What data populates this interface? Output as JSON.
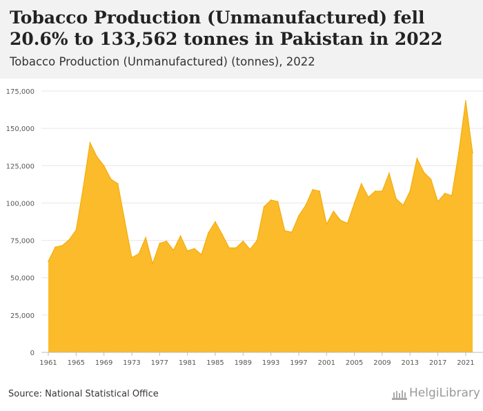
{
  "header": {
    "title": "Tobacco Production (Unmanufactured) fell 20.6% to 133,562 tonnes in Pakistan in 2022",
    "subtitle": "Tobacco Production (Unmanufactured) (tonnes), 2022"
  },
  "footer": {
    "source": "Source: National Statistical Office",
    "logo_text": "HelgiLibrary"
  },
  "colors": {
    "area_fill": "#fbbb2a",
    "area_line": "#f2a900",
    "header_bg": "#f2f2f2",
    "grid": "#e6e6e6"
  },
  "chart_data": {
    "type": "area",
    "title": "Tobacco Production (Unmanufactured) (tonnes), 2022",
    "xlabel": "",
    "ylabel": "",
    "ylim": [
      0,
      175000
    ],
    "y_ticks": [
      0,
      25000,
      50000,
      75000,
      100000,
      125000,
      150000,
      175000
    ],
    "y_tick_labels": [
      "0",
      "25,000",
      "50,000",
      "75,000",
      "100,000",
      "125,000",
      "150,000",
      "175,000"
    ],
    "x_tick_labels": [
      "1961",
      "1965",
      "1969",
      "1973",
      "1977",
      "1981",
      "1985",
      "1989",
      "1993",
      "1997",
      "2001",
      "2005",
      "2009",
      "2013",
      "2017",
      "2021"
    ],
    "grid": true,
    "x": [
      1961,
      1962,
      1963,
      1964,
      1965,
      1966,
      1967,
      1968,
      1969,
      1970,
      1971,
      1972,
      1973,
      1974,
      1975,
      1976,
      1977,
      1978,
      1979,
      1980,
      1981,
      1982,
      1983,
      1984,
      1985,
      1986,
      1987,
      1988,
      1989,
      1990,
      1991,
      1992,
      1993,
      1994,
      1995,
      1996,
      1997,
      1998,
      1999,
      2000,
      2001,
      2002,
      2003,
      2004,
      2005,
      2006,
      2007,
      2008,
      2009,
      2010,
      2011,
      2012,
      2013,
      2014,
      2015,
      2016,
      2017,
      2018,
      2019,
      2020,
      2021,
      2022
    ],
    "values": [
      61000,
      70500,
      71500,
      75500,
      82000,
      110000,
      140500,
      131000,
      125000,
      116000,
      113000,
      88000,
      63500,
      66000,
      77000,
      59500,
      73000,
      74500,
      68500,
      78000,
      68000,
      69500,
      65500,
      80000,
      87500,
      79000,
      70000,
      70000,
      74500,
      69000,
      75000,
      97500,
      102000,
      101000,
      81500,
      80500,
      91500,
      98500,
      109000,
      108000,
      86000,
      94500,
      88500,
      86500,
      100000,
      113000,
      104000,
      108000,
      108000,
      120000,
      103000,
      98500,
      108000,
      130000,
      120500,
      116000,
      101000,
      106500,
      105000,
      134000,
      168500,
      133562
    ]
  }
}
